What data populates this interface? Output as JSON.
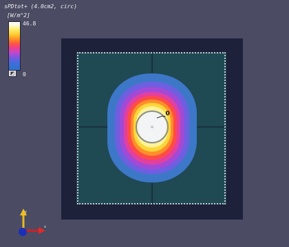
{
  "viewer": {
    "title": "sPDtot+ (4.0cm2, circ)",
    "unit": "[W/m^2]",
    "colorbar": {
      "max_label": "46.8",
      "min_label": "0"
    },
    "marker": {
      "label": "_0"
    }
  },
  "colors": {
    "background": "#4b4b63",
    "outer_plate": "#1d2139",
    "inner_plate": "#1f4953",
    "field_outer": "#3d77c8",
    "field_violet": "#7a5bde",
    "field_magenta": "#cf3fa8",
    "field_red": "#ff4a3a",
    "field_orange": "#ff9a28",
    "field_yellow": "#ffe04a",
    "field_center": "#f3f5f8"
  },
  "icons": {
    "colorbar_toggle": "colorbar-toggle-icon",
    "orientation_axes": "xyz-axes-icon"
  }
}
